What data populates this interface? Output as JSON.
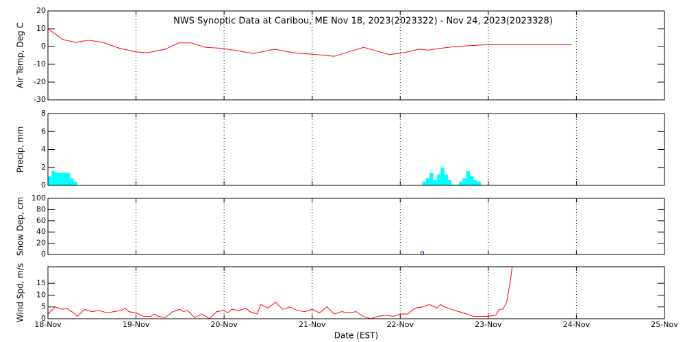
{
  "chart_data": [
    {
      "type": "line",
      "title": "NWS Synoptic Data at Caribou, ME   Nov 18, 2023(2023322) - Nov 24, 2023(2023328)",
      "ylabel": "Air Temp, Deg C",
      "color": "#ff0000",
      "x": [
        0,
        2,
        4,
        7.5,
        11,
        15,
        19.5,
        24,
        27,
        32,
        35.5,
        39,
        43,
        47.5,
        52,
        56,
        61.6,
        67,
        73,
        78,
        82,
        86,
        88.7,
        93,
        97,
        101,
        103.6,
        107,
        111,
        119.5,
        142.8
      ],
      "values": [
        10,
        7,
        4,
        2.3,
        3.5,
        2.3,
        -1,
        -3,
        -3.5,
        -1.5,
        2,
        2,
        -0.5,
        -1,
        -2.5,
        -4,
        -1.5,
        -3.5,
        -4.5,
        -5.5,
        -3,
        -0.5,
        -2,
        -4.5,
        -3.5,
        -1.5,
        -2,
        -1,
        0,
        1,
        1
      ],
      "xlim": [
        0,
        168
      ],
      "xticks": [
        0,
        24,
        48,
        72,
        96,
        120,
        144,
        168
      ],
      "ylim": [
        -30,
        20
      ],
      "yticks": [
        -30,
        -20,
        -10,
        0,
        10,
        20
      ],
      "grid": true
    },
    {
      "type": "bar",
      "ylabel": "Precip, mm",
      "color": "#00ffff",
      "x": [
        0,
        1,
        2,
        3,
        4,
        5,
        6,
        7,
        102,
        103,
        104,
        105,
        106,
        107,
        108,
        109,
        110,
        111,
        112,
        113,
        114,
        115,
        116,
        117
      ],
      "values": [
        1,
        1.6,
        1.4,
        1.4,
        1.4,
        1.4,
        0.8,
        0.4,
        0.4,
        0.8,
        1.4,
        0.6,
        1.2,
        2,
        1.2,
        0.6,
        0.1,
        0.1,
        0.4,
        0.8,
        1.6,
        1,
        0.6,
        0.4
      ],
      "xlim": [
        0,
        168
      ],
      "xticks": [
        0,
        24,
        48,
        72,
        96,
        120,
        144,
        168
      ],
      "ylim": [
        0,
        8
      ],
      "yticks": [
        0,
        2,
        4,
        6,
        8
      ],
      "grid": true
    },
    {
      "type": "scatter",
      "ylabel": "Snow Dep, cm",
      "color": "#0000cc",
      "x": [
        102
      ],
      "values": [
        1
      ],
      "xlim": [
        0,
        168
      ],
      "xticks": [
        0,
        24,
        48,
        72,
        96,
        120,
        144,
        168
      ],
      "ylim": [
        0,
        100
      ],
      "yticks": [
        0,
        20,
        40,
        60,
        80,
        100
      ],
      "grid": true
    },
    {
      "type": "line",
      "ylabel": "Wind Spd, m/s",
      "xlabel": "Date (EST)",
      "color": "#ff0000",
      "x": [
        0,
        2,
        4,
        5,
        7,
        8,
        10,
        12,
        14,
        16,
        18,
        20,
        21,
        22,
        24,
        26,
        28,
        29,
        30,
        32,
        34,
        36,
        37,
        38,
        40,
        42,
        44,
        46,
        48,
        49,
        50,
        52,
        54,
        55,
        57,
        58,
        60,
        62,
        64,
        66,
        68,
        70,
        72,
        74,
        76,
        78,
        80,
        82,
        84,
        86,
        88,
        90,
        92,
        94,
        96,
        98,
        100,
        102,
        104,
        106,
        107,
        108,
        110,
        112,
        114,
        116,
        118,
        120,
        122,
        123,
        124,
        125,
        126,
        126.5
      ],
      "values": [
        2,
        5,
        4,
        4.5,
        2.5,
        1,
        4,
        3,
        3.5,
        2.5,
        3,
        3.5,
        4.5,
        3,
        2.5,
        1,
        1,
        2,
        1,
        0.5,
        3,
        4,
        3,
        3.5,
        0.5,
        2,
        0,
        3,
        3.5,
        2.5,
        4,
        3.5,
        4.5,
        3,
        2,
        6,
        4.5,
        7,
        4,
        5,
        3.5,
        3,
        4,
        2.5,
        5,
        2,
        3,
        2.5,
        3,
        1,
        0,
        1,
        1.5,
        1,
        2,
        2,
        4.5,
        5,
        6,
        4.5,
        6,
        5,
        4,
        3,
        2,
        1,
        1,
        1,
        1.5,
        4,
        4,
        7,
        16,
        22
      ],
      "xlim": [
        0,
        168
      ],
      "xticks": [
        {
          "value": 0,
          "label": "18-Nov"
        },
        {
          "value": 24,
          "label": "19-Nov"
        },
        {
          "value": 48,
          "label": "20-Nov"
        },
        {
          "value": 72,
          "label": "21-Nov"
        },
        {
          "value": 96,
          "label": "22-Nov"
        },
        {
          "value": 120,
          "label": "23-Nov"
        },
        {
          "value": 144,
          "label": "24-Nov"
        },
        {
          "value": 168,
          "label": "25-Nov"
        }
      ],
      "ylim": [
        0,
        22
      ],
      "yticks": [
        0,
        5,
        10,
        15
      ],
      "grid": true
    }
  ]
}
